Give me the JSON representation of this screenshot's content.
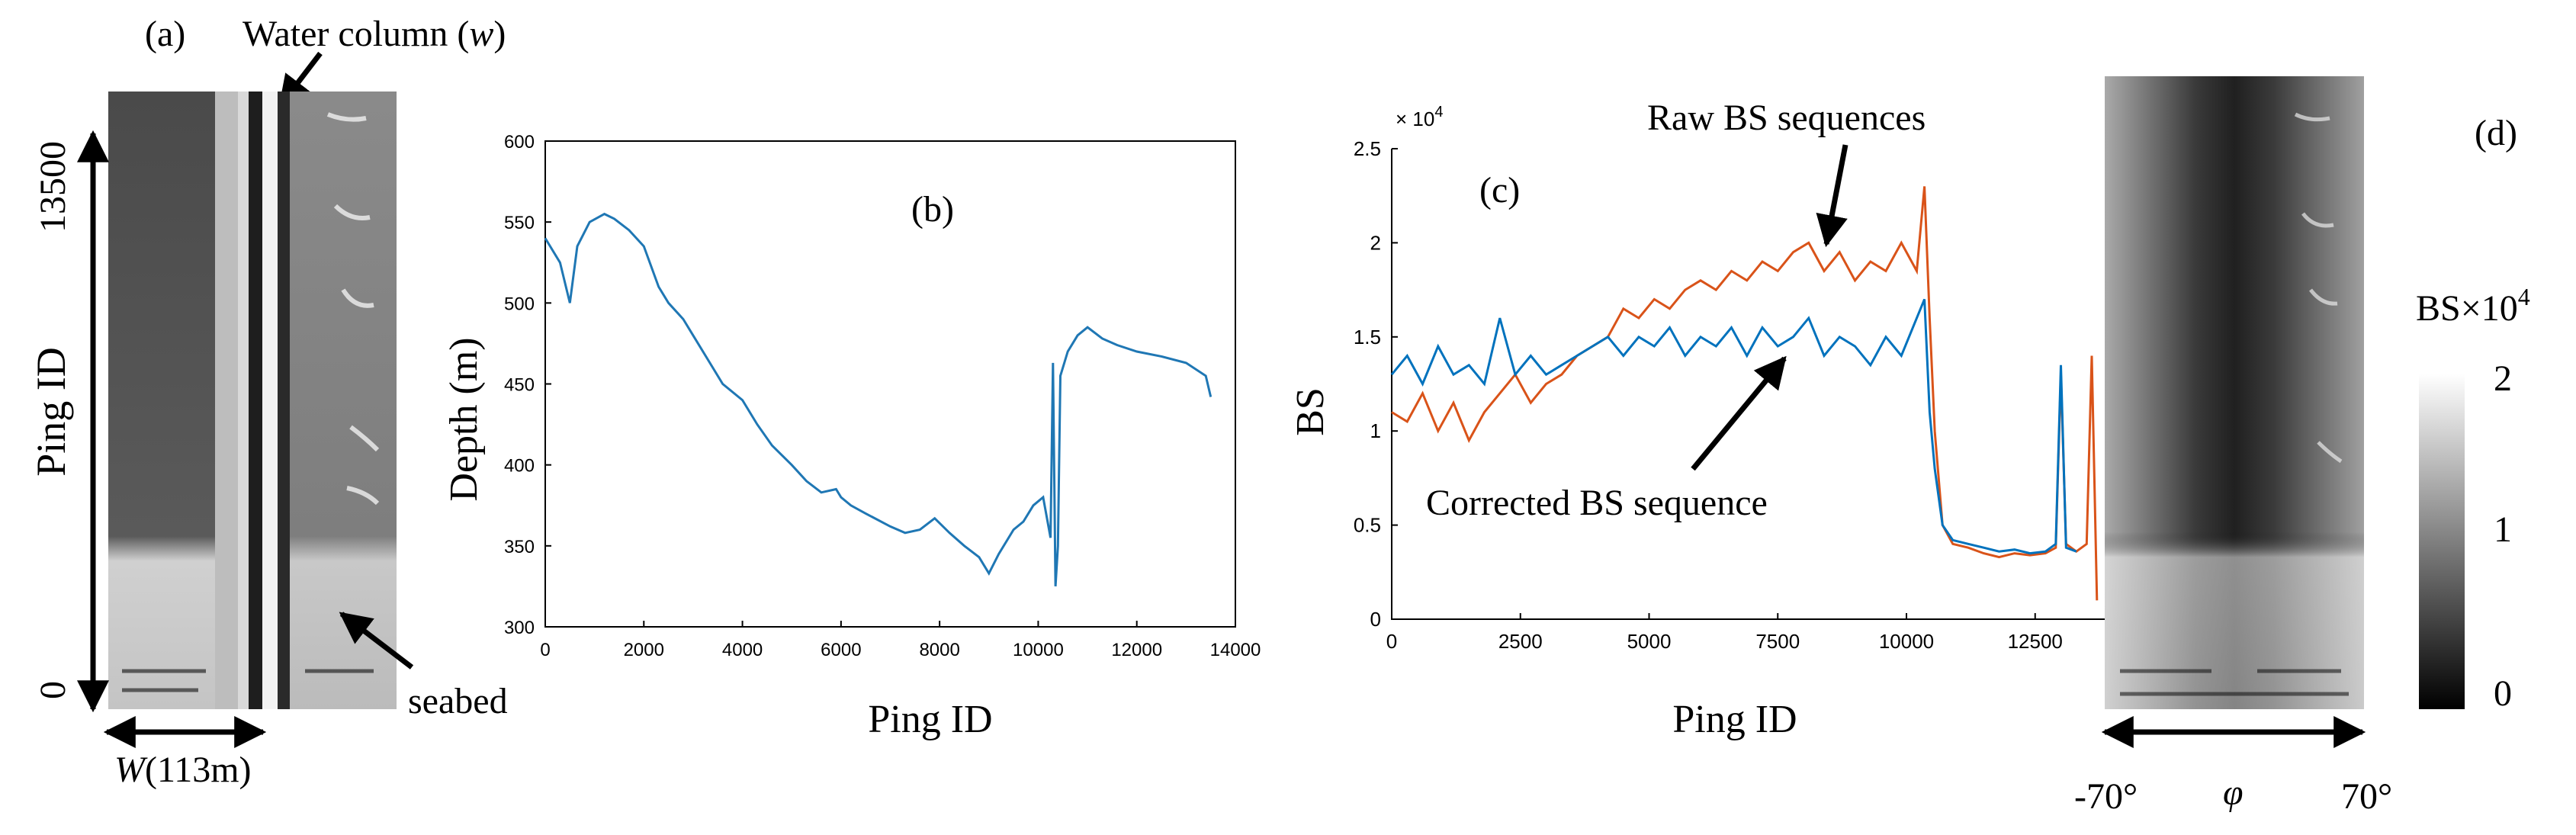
{
  "panel_a": {
    "label": "(a)",
    "water_column_label": "Water column (",
    "water_column_symbol": "w",
    "water_column_close": ")",
    "y_axis_label": "Ping ID",
    "y_top": "13500",
    "y_bottom": "0",
    "width_symbol": "W",
    "width_value": "(113m)",
    "seabed_label": "seabed"
  },
  "panel_d": {
    "label": "(d)",
    "angle_left": "-70°",
    "angle_symbol": "φ",
    "angle_right": "70°",
    "colorbar_title": "BS×10",
    "colorbar_exp": "4",
    "colorbar_ticks": [
      "2",
      "1",
      "0"
    ]
  },
  "chart_data": [
    {
      "type": "line",
      "panel": "(b)",
      "title": "",
      "xlabel": "Ping ID",
      "ylabel": "Depth (m)",
      "xlim": [
        0,
        14000
      ],
      "ylim": [
        300,
        600
      ],
      "xticks": [
        0,
        2000,
        4000,
        6000,
        8000,
        10000,
        12000,
        14000
      ],
      "yticks": [
        300,
        350,
        400,
        450,
        500,
        550,
        600
      ],
      "grid": false,
      "color": "#1f77b4",
      "series": [
        {
          "name": "Depth",
          "x": [
            0,
            300,
            500,
            650,
            900,
            1200,
            1400,
            1700,
            2000,
            2300,
            2500,
            2800,
            3000,
            3300,
            3600,
            4000,
            4300,
            4600,
            5000,
            5300,
            5600,
            5900,
            6000,
            6200,
            6500,
            7000,
            7300,
            7600,
            7900,
            8200,
            8500,
            8800,
            9000,
            9200,
            9500,
            9700,
            9900,
            10100,
            10250,
            10300,
            10350,
            10400,
            10450,
            10600,
            10800,
            11000,
            11300,
            11600,
            12000,
            12500,
            13000,
            13400,
            13500
          ],
          "y": [
            540,
            525,
            500,
            535,
            550,
            555,
            552,
            545,
            535,
            510,
            500,
            490,
            480,
            465,
            450,
            440,
            425,
            412,
            400,
            390,
            383,
            385,
            380,
            375,
            370,
            362,
            358,
            360,
            367,
            358,
            350,
            343,
            333,
            345,
            360,
            365,
            375,
            380,
            355,
            463,
            325,
            350,
            455,
            470,
            480,
            485,
            478,
            474,
            470,
            467,
            463,
            455,
            442
          ]
        }
      ],
      "panel_label": "(b)"
    },
    {
      "type": "line",
      "panel": "(c)",
      "title": "",
      "xlabel": "Ping ID",
      "ylabel": "BS",
      "y_multiplier": "× 10",
      "y_multiplier_exp": "4",
      "xlim": [
        0,
        14000
      ],
      "ylim": [
        0,
        2.5
      ],
      "xticks": [
        0,
        2500,
        5000,
        7500,
        10000,
        12500
      ],
      "yticks": [
        0,
        0.5,
        1,
        1.5,
        2,
        2.5
      ],
      "grid": false,
      "annotations": [
        "Raw BS sequences",
        "Corrected BS sequence"
      ],
      "series": [
        {
          "name": "Raw BS sequences",
          "color": "#d95319",
          "x": [
            0,
            300,
            600,
            900,
            1200,
            1500,
            1800,
            2100,
            2400,
            2700,
            3000,
            3300,
            3600,
            3900,
            4200,
            4500,
            4800,
            5100,
            5400,
            5700,
            6000,
            6300,
            6600,
            6900,
            7200,
            7500,
            7800,
            8100,
            8400,
            8700,
            9000,
            9300,
            9600,
            9900,
            10200,
            10350,
            10450,
            10550,
            10700,
            10900,
            11200,
            11500,
            11800,
            12100,
            12400,
            12700,
            12900,
            13000,
            13100,
            13300,
            13500,
            13600,
            13700
          ],
          "y": [
            1.1,
            1.05,
            1.2,
            1.0,
            1.15,
            0.95,
            1.1,
            1.2,
            1.3,
            1.15,
            1.25,
            1.3,
            1.4,
            1.45,
            1.5,
            1.65,
            1.6,
            1.7,
            1.65,
            1.75,
            1.8,
            1.75,
            1.85,
            1.8,
            1.9,
            1.85,
            1.95,
            2.0,
            1.85,
            1.95,
            1.8,
            1.9,
            1.85,
            2.0,
            1.85,
            2.3,
            1.6,
            1.0,
            0.5,
            0.4,
            0.38,
            0.35,
            0.33,
            0.35,
            0.34,
            0.35,
            0.38,
            1.3,
            0.4,
            0.36,
            0.4,
            1.4,
            0.1
          ]
        },
        {
          "name": "Corrected BS sequence",
          "color": "#0072bd",
          "x": [
            0,
            300,
            600,
            900,
            1200,
            1500,
            1800,
            2100,
            2400,
            2700,
            3000,
            3300,
            3600,
            3900,
            4200,
            4500,
            4800,
            5100,
            5400,
            5700,
            6000,
            6300,
            6600,
            6900,
            7200,
            7500,
            7800,
            8100,
            8400,
            8700,
            9000,
            9300,
            9600,
            9900,
            10200,
            10350,
            10450,
            10550,
            10700,
            10900,
            11200,
            11500,
            11800,
            12100,
            12400,
            12700,
            12900,
            13000,
            13100,
            13300
          ],
          "y": [
            1.3,
            1.4,
            1.25,
            1.45,
            1.3,
            1.35,
            1.25,
            1.6,
            1.3,
            1.4,
            1.3,
            1.35,
            1.4,
            1.45,
            1.5,
            1.4,
            1.5,
            1.45,
            1.55,
            1.4,
            1.5,
            1.45,
            1.55,
            1.4,
            1.55,
            1.45,
            1.5,
            1.6,
            1.4,
            1.5,
            1.45,
            1.35,
            1.5,
            1.4,
            1.6,
            1.7,
            1.1,
            0.8,
            0.5,
            0.42,
            0.4,
            0.38,
            0.36,
            0.37,
            0.35,
            0.36,
            0.4,
            1.35,
            0.38,
            0.36
          ]
        }
      ],
      "panel_label": "(c)"
    }
  ]
}
